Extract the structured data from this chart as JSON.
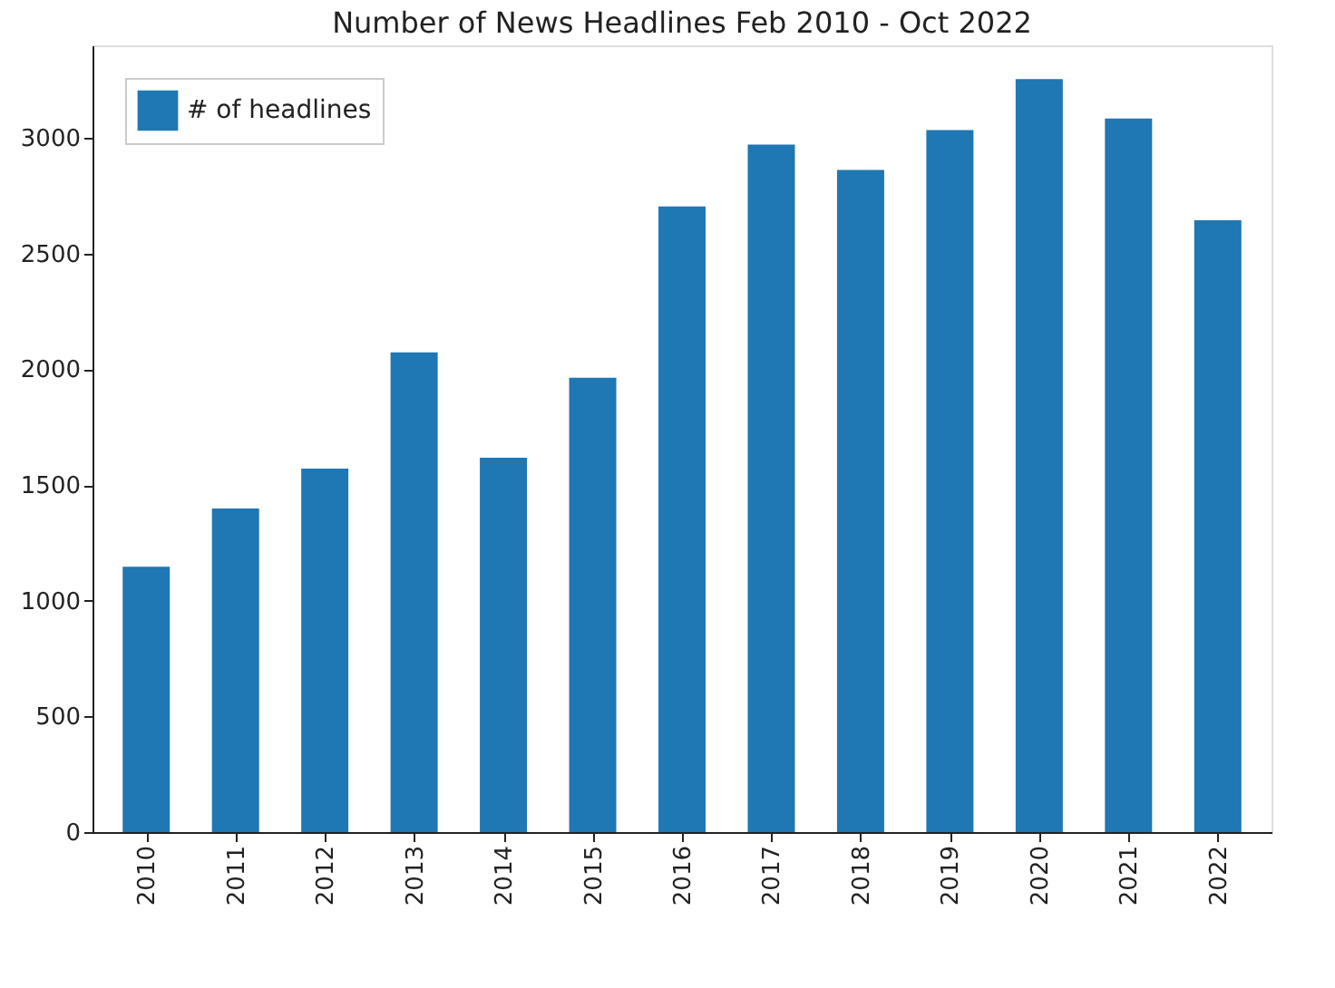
{
  "chart_data": {
    "type": "bar",
    "title": "Number of News Headlines Feb 2010 - Oct 2022",
    "categories": [
      "2010",
      "2011",
      "2012",
      "2013",
      "2014",
      "2015",
      "2016",
      "2017",
      "2018",
      "2019",
      "2020",
      "2021",
      "2022"
    ],
    "series": [
      {
        "name": "# of headlines",
        "color": "#1f77b4",
        "values": [
          1147,
          1398,
          1571,
          2073,
          1618,
          1963,
          2704,
          2971,
          2861,
          3034,
          3254,
          3084,
          2644
        ]
      }
    ],
    "ylim": [
      0,
      3400
    ],
    "yticks": [
      0,
      500,
      1000,
      1500,
      2000,
      2500,
      3000
    ],
    "grid": false,
    "legend": "top left"
  }
}
